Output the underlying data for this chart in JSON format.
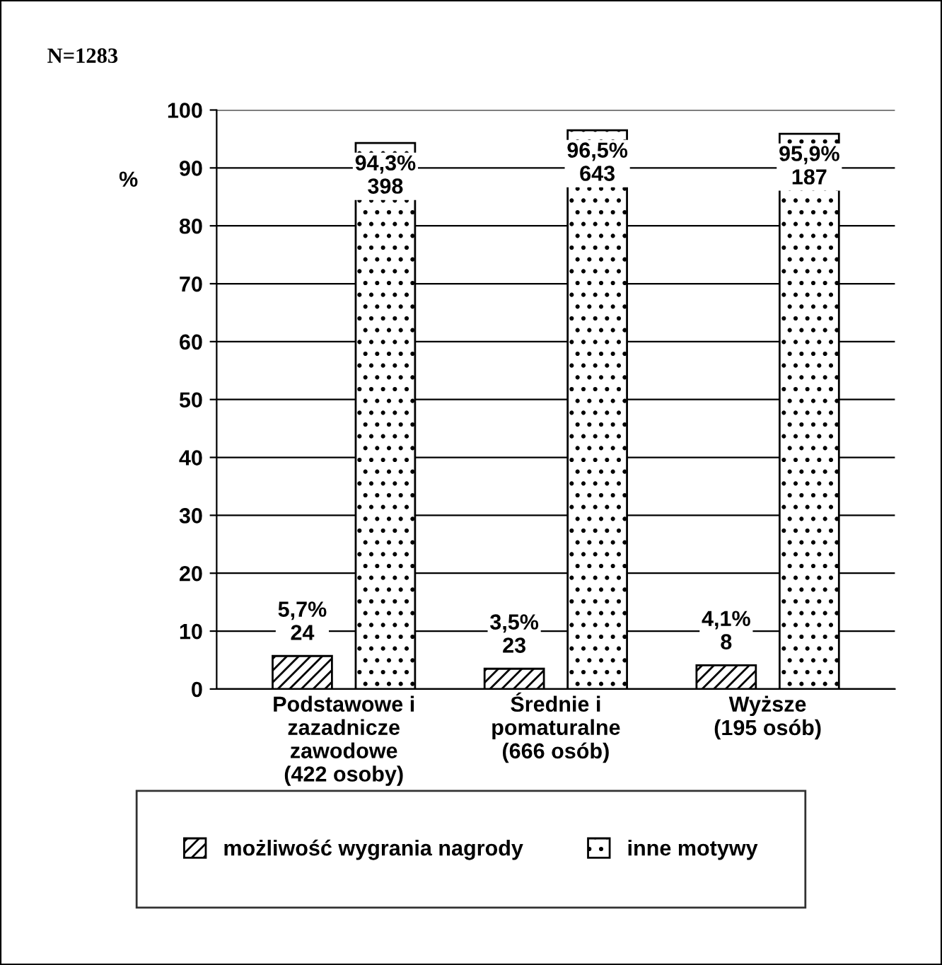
{
  "chart_data": {
    "type": "bar",
    "ylabel": "%",
    "annotations": [
      "N=1283"
    ],
    "categories": [
      "Podstawowe i\nzazadnicze\nzawodowe\n(422 osoby)",
      "Średnie i\npomaturalne\n(666 osób)",
      "Wyższe\n(195 osób)"
    ],
    "series": [
      {
        "name": "możliwość wygrania nagrody",
        "color": "#000000",
        "values": [
          5.7,
          3.5,
          4.1
        ],
        "value_labels": [
          "5,7%\n24",
          "3,5%\n23",
          "4,1%\n8"
        ]
      },
      {
        "name": "inne motywy",
        "color": "#000000",
        "values": [
          94.3,
          96.5,
          95.9
        ],
        "value_labels": [
          "94,3%\n398",
          "96,5%\n643",
          "95,9%\n187"
        ]
      }
    ],
    "ylim": [
      0,
      100
    ],
    "yticks": [
      0,
      10,
      20,
      30,
      40,
      50,
      60,
      70,
      80,
      90,
      100
    ],
    "grid": "y",
    "legend": "bottom"
  }
}
